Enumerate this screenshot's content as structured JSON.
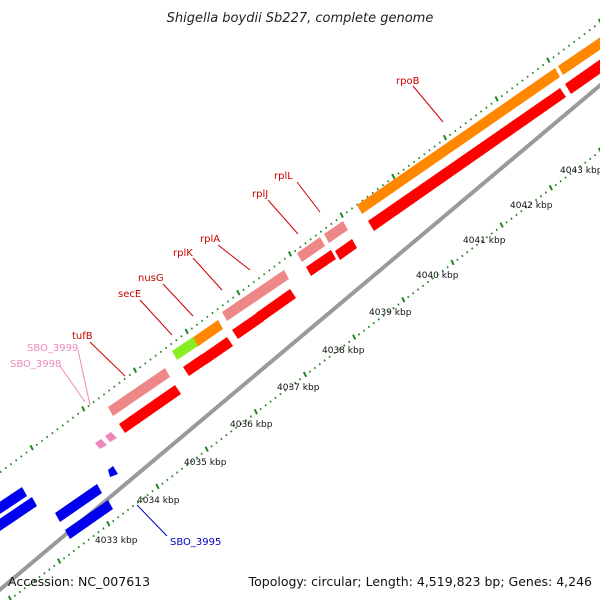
{
  "title": "Shigella boydii Sb227, complete genome",
  "footer": {
    "accession": "Accession: NC_007613",
    "summary": "Topology: circular; Length: 4,519,823 bp; Genes: 4,246"
  },
  "ticks": [
    {
      "label": "4033 kbp"
    },
    {
      "label": "4034 kbp"
    },
    {
      "label": "4035 kbp"
    },
    {
      "label": "4036 kbp"
    },
    {
      "label": "4037 kbp"
    },
    {
      "label": "4038 kbp"
    },
    {
      "label": "4039 kbp"
    },
    {
      "label": "4040 kbp"
    },
    {
      "label": "4041 kbp"
    },
    {
      "label": "4042 kbp"
    },
    {
      "label": "4043 kbp"
    }
  ],
  "gene_labels": [
    {
      "name": "rpoB",
      "color": "#cc0000"
    },
    {
      "name": "rplL",
      "color": "#cc0000"
    },
    {
      "name": "rplJ",
      "color": "#cc0000"
    },
    {
      "name": "rplA",
      "color": "#cc0000"
    },
    {
      "name": "rplK",
      "color": "#cc0000"
    },
    {
      "name": "nusG",
      "color": "#cc0000"
    },
    {
      "name": "secE",
      "color": "#cc0000"
    },
    {
      "name": "tufB",
      "color": "#cc0000"
    },
    {
      "name": "SBO_3999",
      "color": "#ee88bb"
    },
    {
      "name": "SBO_3998",
      "color": "#ee88bb"
    },
    {
      "name": "SBO_3995",
      "color": "#0000cc"
    }
  ],
  "colors": {
    "cds": "#ff0000",
    "gene_light": "#ee8888",
    "rrna_orange": "#ff8800",
    "trna_green": "#88ee22",
    "pink_small": "#ee88bb",
    "blue": "#0000ee",
    "backbone": "#888888",
    "tick_green": "#228822"
  }
}
